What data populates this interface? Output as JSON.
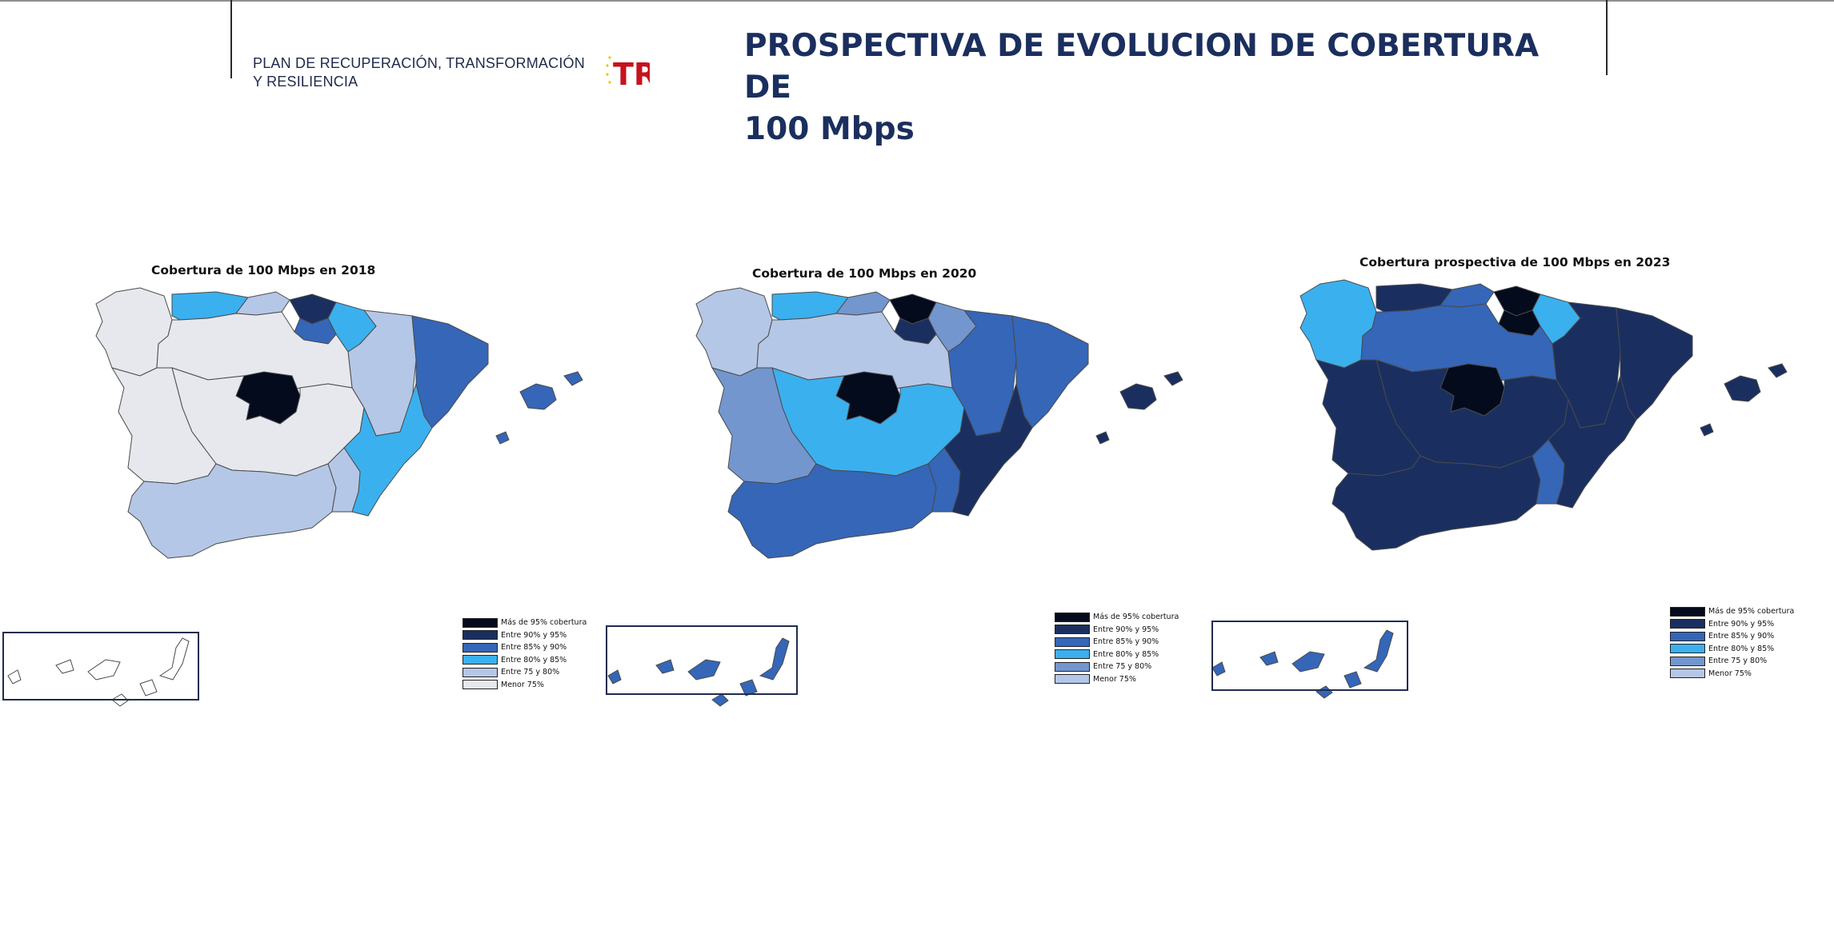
{
  "header": {
    "plan_text": "PLAN DE RECUPERACIÓN, TRANSFORMACIÓN Y RESILIENCIA",
    "logo_text": "TR",
    "title_line1": "PROSPECTIVA DE EVOLUCION DE COBERTURA DE",
    "title_line2": "100 Mbps"
  },
  "colors": {
    "c95": "#040b1c",
    "c90": "#1a2f60",
    "c85": "#3566b8",
    "c80": "#3bb0ef",
    "c75": "#7396cf",
    "cLow": "#b5c7e6",
    "cVeryLow": "#e6e8ee"
  },
  "panels": [
    {
      "title": "Cobertura de 100 Mbps en 2018",
      "legend": [
        {
          "label": "Más de 95% cobertura",
          "color": "#040b1c"
        },
        {
          "label": "Entre 90% y 95%",
          "color": "#1a2f60"
        },
        {
          "label": "Entre 85% y 90%",
          "color": "#3566b8"
        },
        {
          "label": "Entre 80% y 85%",
          "color": "#3bb0ef"
        },
        {
          "label": "Entre 75 y 80%",
          "color": "#b5c7e6"
        },
        {
          "label": "Menor 75%",
          "color": "#e6e8ee"
        }
      ],
      "regions": {
        "galicia": "#e6e8ee",
        "asturias": "#3bb0ef",
        "cantabria": "#b5c7e6",
        "paisvasco": "#1a2f60",
        "navarra": "#3bb0ef",
        "larioja": "#3566b8",
        "aragon": "#b5c7e6",
        "cataluna": "#3566b8",
        "castillaleon": "#e6e8ee",
        "madrid": "#040b1c",
        "castillamancha": "#e6e8ee",
        "valencia": "#3bb0ef",
        "extremadura": "#e6e8ee",
        "andalucia": "#b5c7e6",
        "murcia": "#b5c7e6",
        "baleares": "#3566b8",
        "canarias": "#ffffff"
      }
    },
    {
      "title": "Cobertura de 100 Mbps en 2020",
      "legend": [
        {
          "label": "Más de 95% cobertura",
          "color": "#040b1c"
        },
        {
          "label": "Entre 90% y 95%",
          "color": "#1a2f60"
        },
        {
          "label": "Entre 85% y 90%",
          "color": "#3566b8"
        },
        {
          "label": "Entre 80% y 85%",
          "color": "#3bb0ef"
        },
        {
          "label": "Entre 75 y 80%",
          "color": "#7396cf"
        },
        {
          "label": "Menor 75%",
          "color": "#b5c7e6"
        }
      ],
      "regions": {
        "galicia": "#b5c7e6",
        "asturias": "#3bb0ef",
        "cantabria": "#7396cf",
        "paisvasco": "#040b1c",
        "navarra": "#7396cf",
        "larioja": "#1a2f60",
        "aragon": "#3566b8",
        "cataluna": "#3566b8",
        "castillaleon": "#b5c7e6",
        "madrid": "#040b1c",
        "castillamancha": "#3bb0ef",
        "valencia": "#1a2f60",
        "extremadura": "#7396cf",
        "andalucia": "#3566b8",
        "murcia": "#3566b8",
        "baleares": "#1a2f60",
        "canarias": "#3566b8"
      }
    },
    {
      "title": "Cobertura prospectiva de 100 Mbps en 2023",
      "legend": [
        {
          "label": "Más de 95% cobertura",
          "color": "#040b1c"
        },
        {
          "label": "Entre 90% y 95%",
          "color": "#1a2f60"
        },
        {
          "label": "Entre 85% y 90%",
          "color": "#3566b8"
        },
        {
          "label": "Entre 80% y 85%",
          "color": "#3bb0ef"
        },
        {
          "label": "Entre 75 y 80%",
          "color": "#7396cf"
        },
        {
          "label": "Menor 75%",
          "color": "#b5c7e6"
        }
      ],
      "regions": {
        "galicia": "#3bb0ef",
        "asturias": "#1a2f60",
        "cantabria": "#3566b8",
        "paisvasco": "#040b1c",
        "navarra": "#3bb0ef",
        "larioja": "#040b1c",
        "aragon": "#1a2f60",
        "cataluna": "#1a2f60",
        "castillaleon": "#3566b8",
        "madrid": "#040b1c",
        "castillamancha": "#1a2f60",
        "valencia": "#1a2f60",
        "extremadura": "#1a2f60",
        "andalucia": "#1a2f60",
        "murcia": "#3566b8",
        "baleares": "#1a2f60",
        "canarias": "#3566b8"
      }
    }
  ]
}
